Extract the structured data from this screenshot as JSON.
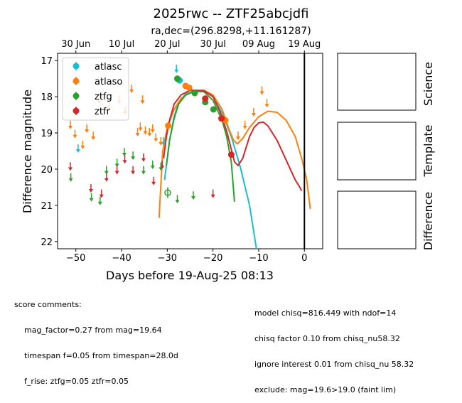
{
  "chart_data": {
    "type": "scatter",
    "title": "2025rwc -- ZTF25abcjdfi",
    "subtitle": "ra,dec=(296.8298,+11.161287)",
    "xlabel": "Days before 19-Aug-25 08:13",
    "ylabel": "Difference magnitude",
    "xlim": [
      -54,
      4
    ],
    "ylim": [
      22.2,
      16.8
    ],
    "x_ticks": [
      -50,
      -40,
      -30,
      -20,
      -10,
      0
    ],
    "y_ticks": [
      17,
      18,
      19,
      20,
      21,
      22
    ],
    "top_axis_ticks": [
      {
        "x": -50,
        "label": "30 Jun"
      },
      {
        "x": -40,
        "label": "10 Jul"
      },
      {
        "x": -30,
        "label": "20 Jul"
      },
      {
        "x": -20,
        "label": "30 Jul"
      },
      {
        "x": -10,
        "label": "09 Aug"
      },
      {
        "x": 0,
        "label": "19 Aug"
      }
    ],
    "reference_line_x": 0,
    "legend_position": "top-left",
    "colors": {
      "atlasc": "#17becf",
      "atlaso": "#ff7f0e",
      "ztfg": "#2ca02c",
      "ztfr": "#d62728"
    },
    "series": [
      {
        "name": "atlasc",
        "color": "#17becf",
        "detections": [
          {
            "x": -27.3,
            "y": 17.55,
            "err": 0.08
          }
        ],
        "limits": [
          {
            "x": -49.5,
            "y": 19.45
          },
          {
            "x": -30.8,
            "y": 19.25
          },
          {
            "x": -28.0,
            "y": 17.25
          }
        ]
      },
      {
        "name": "atlaso",
        "color": "#ff7f0e",
        "detections": [
          {
            "x": -29.8,
            "y": 18.8,
            "err": 0.12
          },
          {
            "x": -26.0,
            "y": 17.7,
            "err": 0.06
          },
          {
            "x": -25.2,
            "y": 17.75,
            "err": 0.06
          },
          {
            "x": -18.2,
            "y": 18.6,
            "err": 0.08
          },
          {
            "x": -17.3,
            "y": 18.65,
            "err": 0.1
          }
        ],
        "limits": [
          {
            "x": -51.2,
            "y": 18.8
          },
          {
            "x": -50.2,
            "y": 19.05
          },
          {
            "x": -48.5,
            "y": 19.35
          },
          {
            "x": -47.6,
            "y": 18.9
          },
          {
            "x": -46.2,
            "y": 19.1
          },
          {
            "x": -44.8,
            "y": 18.1
          },
          {
            "x": -42.7,
            "y": 18.3
          },
          {
            "x": -40.5,
            "y": 18.1
          },
          {
            "x": -39.2,
            "y": 18.4
          },
          {
            "x": -37.8,
            "y": 17.8
          },
          {
            "x": -36.5,
            "y": 19.0
          },
          {
            "x": -35.9,
            "y": 18.85
          },
          {
            "x": -35.4,
            "y": 18.1
          },
          {
            "x": -34.8,
            "y": 18.95
          },
          {
            "x": -33.9,
            "y": 19.0
          },
          {
            "x": -33.2,
            "y": 18.9
          },
          {
            "x": -32.5,
            "y": 19.15
          },
          {
            "x": -31.4,
            "y": 19.25
          },
          {
            "x": -14.5,
            "y": 19.1
          },
          {
            "x": -13.0,
            "y": 18.8
          },
          {
            "x": -11.1,
            "y": 18.45
          },
          {
            "x": -9.3,
            "y": 17.85
          },
          {
            "x": -8.2,
            "y": 18.2
          }
        ]
      },
      {
        "name": "ztfg",
        "color": "#2ca02c",
        "detections": [
          {
            "x": -29.9,
            "y": 20.65,
            "err": 0.15,
            "open": true
          },
          {
            "x": -27.8,
            "y": 17.5,
            "err": 0.05
          },
          {
            "x": -24.0,
            "y": 17.9,
            "err": 0.05
          },
          {
            "x": -21.7,
            "y": 18.15,
            "err": 0.05
          },
          {
            "x": -19.9,
            "y": 18.35,
            "err": 0.05
          }
        ],
        "limits": [
          {
            "x": -51.1,
            "y": 20.25
          },
          {
            "x": -46.6,
            "y": 20.8
          },
          {
            "x": -44.7,
            "y": 20.9
          },
          {
            "x": -43.3,
            "y": 20.05
          },
          {
            "x": -41.0,
            "y": 19.85
          },
          {
            "x": -39.4,
            "y": 19.55
          },
          {
            "x": -37.5,
            "y": 19.65
          },
          {
            "x": -35.2,
            "y": 20.05
          },
          {
            "x": -33.2,
            "y": 19.9
          },
          {
            "x": -31.4,
            "y": 19.95
          },
          {
            "x": -27.8,
            "y": 20.85
          },
          {
            "x": -24.3,
            "y": 20.75
          }
        ]
      },
      {
        "name": "ztfr",
        "color": "#d62728",
        "detections": [
          {
            "x": -21.7,
            "y": 18.05,
            "err": 0.05
          },
          {
            "x": -18.1,
            "y": 18.6,
            "err": 0.05
          },
          {
            "x": -16.0,
            "y": 19.6,
            "err": 0.08
          }
        ],
        "limits": [
          {
            "x": -51.2,
            "y": 19.95
          },
          {
            "x": -46.7,
            "y": 20.55
          },
          {
            "x": -44.4,
            "y": 20.7
          },
          {
            "x": -43.3,
            "y": 20.25
          },
          {
            "x": -41.0,
            "y": 20.05
          },
          {
            "x": -39.3,
            "y": 19.75
          },
          {
            "x": -37.5,
            "y": 20.05
          },
          {
            "x": -35.2,
            "y": 19.7
          },
          {
            "x": -33.0,
            "y": 20.35
          },
          {
            "x": -31.1,
            "y": 19.9
          },
          {
            "x": -20.0,
            "y": 20.7
          }
        ]
      }
    ],
    "model_curves": [
      {
        "name": "atlasc",
        "color": "#17becf",
        "points": [
          [
            -30.6,
            20.3
          ],
          [
            -29.5,
            19.2
          ],
          [
            -28.5,
            18.55
          ],
          [
            -27.5,
            18.15
          ],
          [
            -26.0,
            17.93
          ],
          [
            -24.0,
            17.82
          ],
          [
            -22.0,
            17.83
          ],
          [
            -20.0,
            18.0
          ],
          [
            -18.0,
            18.45
          ],
          [
            -16.0,
            19.1
          ],
          [
            -14.0,
            19.95
          ],
          [
            -12.0,
            21.0
          ],
          [
            -10.5,
            22.2
          ]
        ]
      },
      {
        "name": "atlaso",
        "color": "#ff7f0e",
        "points": [
          [
            -31.8,
            21.35
          ],
          [
            -31.0,
            19.5
          ],
          [
            -30.0,
            18.85
          ],
          [
            -28.5,
            18.35
          ],
          [
            -27.0,
            18.05
          ],
          [
            -25.0,
            17.88
          ],
          [
            -22.0,
            17.82
          ],
          [
            -20.0,
            17.95
          ],
          [
            -18.0,
            18.35
          ],
          [
            -16.5,
            18.9
          ],
          [
            -15.5,
            19.2
          ],
          [
            -14.7,
            19.3
          ],
          [
            -13.5,
            19.15
          ],
          [
            -12.0,
            18.85
          ],
          [
            -10.0,
            18.55
          ],
          [
            -8.0,
            18.4
          ],
          [
            -6.0,
            18.43
          ],
          [
            -4.0,
            18.65
          ],
          [
            -2.0,
            19.1
          ],
          [
            -0.5,
            19.75
          ],
          [
            0.5,
            20.3
          ],
          [
            1.3,
            21.1
          ]
        ]
      },
      {
        "name": "ztfg",
        "color": "#2ca02c",
        "points": [
          [
            -30.2,
            19.9
          ],
          [
            -29.5,
            19.2
          ],
          [
            -28.5,
            18.6
          ],
          [
            -27.5,
            18.2
          ],
          [
            -26.0,
            17.95
          ],
          [
            -24.0,
            17.85
          ],
          [
            -22.0,
            17.86
          ],
          [
            -20.0,
            18.1
          ],
          [
            -18.0,
            18.65
          ],
          [
            -17.0,
            19.1
          ],
          [
            -16.0,
            19.8
          ],
          [
            -15.3,
            20.9
          ]
        ]
      },
      {
        "name": "ztfr",
        "color": "#d62728",
        "points": [
          [
            -30.8,
            19.7
          ],
          [
            -30.2,
            19.1
          ],
          [
            -29.5,
            18.65
          ],
          [
            -28.5,
            18.2
          ],
          [
            -27.0,
            17.95
          ],
          [
            -25.0,
            17.82
          ],
          [
            -22.0,
            17.83
          ],
          [
            -20.0,
            18.0
          ],
          [
            -18.5,
            18.4
          ],
          [
            -17.0,
            18.95
          ],
          [
            -16.0,
            19.45
          ],
          [
            -15.3,
            19.8
          ],
          [
            -14.5,
            19.9
          ],
          [
            -13.5,
            19.7
          ],
          [
            -12.0,
            19.1
          ],
          [
            -11.0,
            18.85
          ],
          [
            -10.0,
            18.72
          ],
          [
            -9.0,
            18.7
          ],
          [
            -8.0,
            18.8
          ],
          [
            -6.0,
            19.2
          ],
          [
            -4.0,
            19.75
          ],
          [
            -2.0,
            20.3
          ],
          [
            -1.0,
            20.5
          ],
          [
            -0.6,
            20.6
          ]
        ]
      }
    ]
  },
  "panels": {
    "science_label": "Science",
    "template_label": "Template",
    "difference_label": "Difference"
  },
  "comments": {
    "score_header": "score comments:",
    "score_lines": [
      "mag_factor=0.27 from mag=19.64",
      "timespan f=0.05 from timespan=28.0d",
      "f_rise: ztfg=0.05 ztfr=0.05"
    ],
    "model_lines": [
      "model chisq=816.449 with ndof=14",
      "chisq factor 0.10 from chisq_nu58.32",
      "ignore interest 0.01 from chisq_nu 58.32",
      "exclude: mag=19.6>19.0 (faint lim)"
    ]
  }
}
